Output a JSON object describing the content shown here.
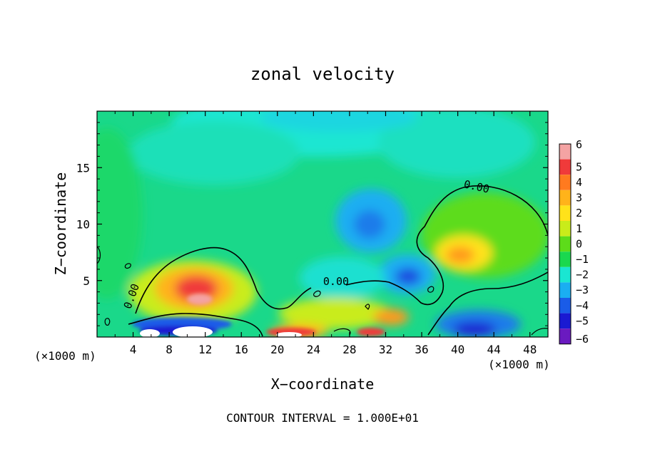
{
  "chart_data": {
    "type": "heatmap",
    "title": "zonal velocity",
    "xlabel": "X−coordinate",
    "ylabel": "Z−coordinate",
    "x_units_left": "(×1000 m)",
    "x_units_right": "(×1000 m)",
    "xlim": [
      0,
      50
    ],
    "ylim": [
      0,
      20
    ],
    "x_ticks": [
      4,
      8,
      12,
      16,
      20,
      24,
      28,
      32,
      36,
      40,
      44,
      48
    ],
    "x_tick_labels": [
      "4",
      "8",
      "12",
      "16",
      "20",
      "24",
      "28",
      "32",
      "36",
      "40",
      "44",
      "48"
    ],
    "y_ticks": [
      5,
      10,
      15
    ],
    "y_tick_labels": [
      "5",
      "10",
      "15"
    ],
    "colorbar": {
      "levels": [
        6,
        5,
        4,
        3,
        2,
        1,
        0,
        -1,
        -2,
        -3,
        -4,
        -5,
        -6
      ],
      "labels": [
        "6",
        "5",
        "4",
        "3",
        "2",
        "1",
        "0",
        "−1",
        "−2",
        "−3",
        "−4",
        "−5",
        "−6"
      ],
      "colors": [
        "#f4a3a3",
        "#f03a3a",
        "#ff7a1f",
        "#ffb31a",
        "#ffe21a",
        "#c9ec1a",
        "#5ddc1a",
        "#1ad84f",
        "#1ae6d2",
        "#1aaef2",
        "#1a5ce8",
        "#1a1ad2",
        "#6a1ac0"
      ]
    },
    "contour_labels": [
      {
        "text": "0.00",
        "x": 42,
        "z": 13.0
      },
      {
        "text": "0.00",
        "x": 26.5,
        "z": 4.6
      },
      {
        "text": "0.00",
        "x": 4.2,
        "z": 3.5
      }
    ],
    "features": [
      {
        "kind": "max",
        "x": 11,
        "z": 4.5,
        "value": 5.5
      },
      {
        "kind": "max",
        "x": 40,
        "z": 7.5,
        "value": 3.2
      },
      {
        "kind": "min",
        "x": 30,
        "z": 10.3,
        "value": -3.2
      },
      {
        "kind": "min",
        "x": 34,
        "z": 5.0,
        "value": -3.8
      },
      {
        "kind": "min",
        "x": 10,
        "z": 1.0,
        "value": -5.5
      },
      {
        "kind": "min",
        "x": 41,
        "z": 1.2,
        "value": -4.8
      }
    ],
    "footnote": "CONTOUR INTERVAL = 1.000E+01"
  }
}
